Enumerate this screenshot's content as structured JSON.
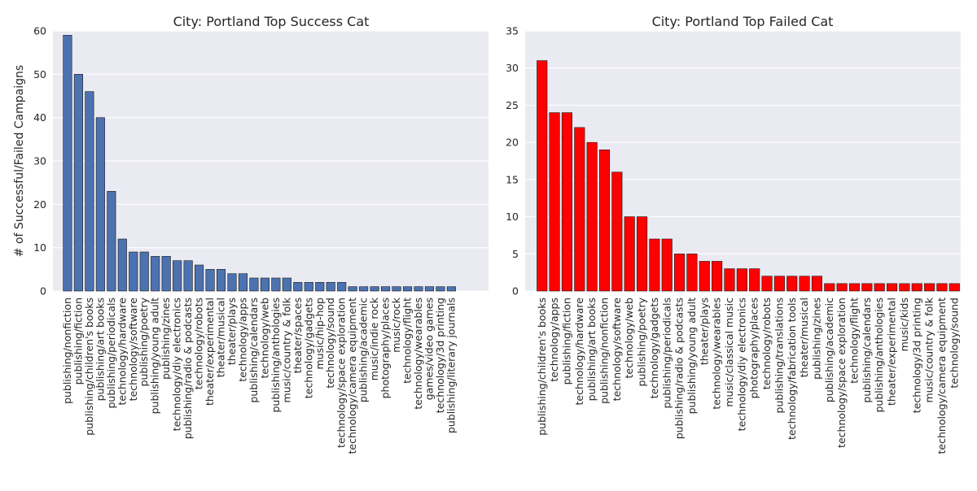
{
  "chart_data": [
    {
      "type": "bar",
      "title": "City: Portland Top Success Cat",
      "ylabel": "# of Successful/Failed Campaigns",
      "xlabel": "",
      "ylim": [
        0,
        60
      ],
      "yticks": [
        0,
        10,
        20,
        30,
        40,
        50,
        60
      ],
      "grid": true,
      "bar_color": "#4c72b0",
      "background_color": "#eaeaf2",
      "categories": [
        "publishing/nonfiction",
        "publishing/fiction",
        "publishing/children's books",
        "publishing/art books",
        "publishing/periodicals",
        "technology/hardware",
        "technology/software",
        "publishing/poetry",
        "publishing/young adult",
        "publishing/zines",
        "technology/diy electronics",
        "publishing/radio & podcasts",
        "technology/robots",
        "theater/experimental",
        "theater/musical",
        "theater/plays",
        "technology/apps",
        "publishing/calendars",
        "technology/web",
        "publishing/anthologies",
        "music/country & folk",
        "theater/spaces",
        "technology/gadgets",
        "music/hip-hop",
        "technology/sound",
        "technology/space exploration",
        "technology/camera equipment",
        "publishing/academic",
        "music/indie rock",
        "photography/places",
        "music/rock",
        "technology/flight",
        "technology/wearables",
        "games/video games",
        "technology/3d printing",
        "publishing/literary journals"
      ],
      "values": [
        59,
        50,
        46,
        40,
        23,
        12,
        9,
        9,
        8,
        8,
        7,
        7,
        6,
        5,
        5,
        4,
        4,
        3,
        3,
        3,
        3,
        2,
        2,
        2,
        2,
        2,
        1,
        1,
        1,
        1,
        1,
        1,
        1,
        1,
        1,
        1
      ]
    },
    {
      "type": "bar",
      "title": "City: Portland Top Failed Cat",
      "ylabel": "",
      "xlabel": "",
      "ylim": [
        0,
        35
      ],
      "yticks": [
        0,
        5,
        10,
        15,
        20,
        25,
        30,
        35
      ],
      "grid": true,
      "bar_color": "#ff0000",
      "background_color": "#eaeaf2",
      "categories": [
        "publishing/children's books",
        "technology/apps",
        "publishing/fiction",
        "technology/hardware",
        "publishing/art books",
        "publishing/nonfiction",
        "technology/software",
        "technology/web",
        "publishing/poetry",
        "technology/gadgets",
        "publishing/periodicals",
        "publishing/radio & podcasts",
        "publishing/young adult",
        "theater/plays",
        "technology/wearables",
        "music/classical music",
        "technology/diy electronics",
        "photography/places",
        "technology/robots",
        "publishing/translations",
        "technology/fabrication tools",
        "theater/musical",
        "publishing/zines",
        "publishing/academic",
        "technology/space exploration",
        "technology/flight",
        "publishing/calendars",
        "publishing/anthologies",
        "theater/experimental",
        "music/kids",
        "technology/3d printing",
        "music/country & folk",
        "technology/camera equipment",
        "technology/sound"
      ],
      "values": [
        31,
        24,
        24,
        22,
        20,
        19,
        16,
        10,
        10,
        7,
        7,
        5,
        5,
        4,
        4,
        3,
        3,
        3,
        2,
        2,
        2,
        2,
        2,
        1,
        1,
        1,
        1,
        1,
        1,
        1,
        1,
        1,
        1,
        1
      ]
    }
  ]
}
